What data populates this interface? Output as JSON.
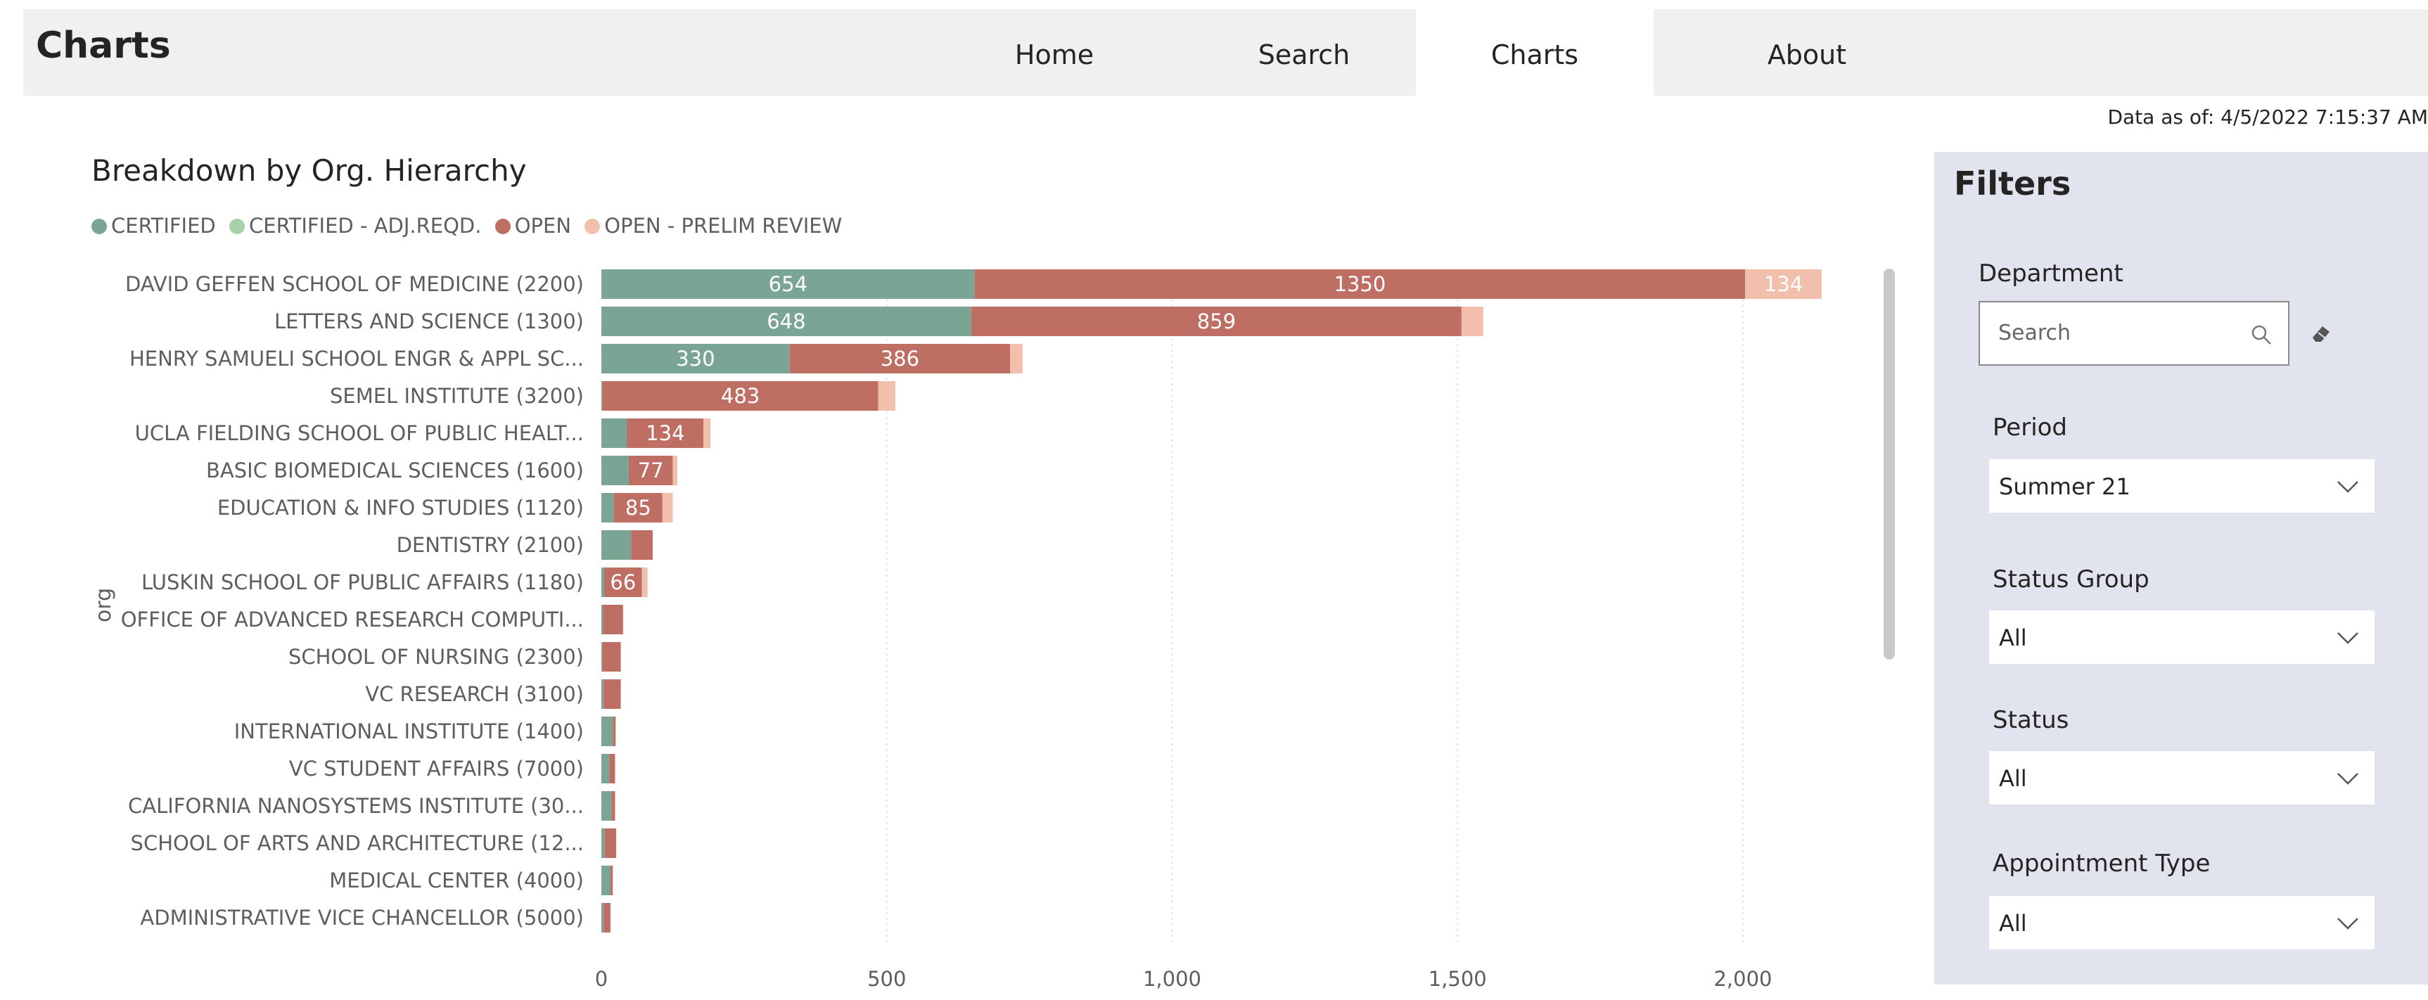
{
  "header": {
    "app_title": "Charts",
    "tabs": [
      {
        "label": "Home",
        "active": false
      },
      {
        "label": "Search",
        "active": false
      },
      {
        "label": "Charts",
        "active": true
      },
      {
        "label": "About",
        "active": false
      }
    ]
  },
  "data_as_of": "Data as of: 4/5/2022 7:15:37 AM",
  "chart_data": {
    "type": "bar",
    "orientation": "horizontal",
    "stacked": true,
    "title": "Breakdown by Org. Hierarchy",
    "ylabel": "org",
    "xlabel": "",
    "xlim": [
      0,
      2200
    ],
    "x_ticks": [
      0,
      500,
      1000,
      1500,
      2000
    ],
    "x_tick_labels": [
      "0",
      "500",
      "1,000",
      "1,500",
      "2,000"
    ],
    "grid": true,
    "legend_position": "top-left",
    "categories": [
      "DAVID GEFFEN SCHOOL OF MEDICINE (2200)",
      "LETTERS AND SCIENCE (1300)",
      "HENRY SAMUELI SCHOOL ENGR & APPL SC...",
      "SEMEL INSTITUTE (3200)",
      "UCLA FIELDING SCHOOL OF PUBLIC HEALT...",
      "BASIC BIOMEDICAL SCIENCES (1600)",
      "EDUCATION & INFO STUDIES (1120)",
      "DENTISTRY (2100)",
      "LUSKIN SCHOOL OF PUBLIC AFFAIRS (1180)",
      "OFFICE OF ADVANCED RESEARCH COMPUTI...",
      "SCHOOL OF NURSING (2300)",
      "VC RESEARCH (3100)",
      "INTERNATIONAL INSTITUTE (1400)",
      "VC STUDENT AFFAIRS (7000)",
      "CALIFORNIA NANOSYSTEMS INSTITUTE (30...",
      "SCHOOL OF ARTS AND ARCHITECTURE (12...",
      "MEDICAL CENTER (4000)",
      "ADMINISTRATIVE VICE CHANCELLOR (5000)"
    ],
    "series": [
      {
        "name": "CERTIFIED",
        "color": "#7aa595",
        "values": [
          654,
          648,
          330,
          2,
          45,
          48,
          22,
          52,
          5,
          3,
          2,
          4,
          20,
          14,
          18,
          6,
          16,
          4
        ],
        "labels": [
          "654",
          "648",
          "330",
          "",
          "",
          "",
          "",
          "",
          "",
          "",
          "",
          "",
          "",
          "",
          "",
          "",
          "",
          ""
        ]
      },
      {
        "name": "CERTIFIED - ADJ.REQD.",
        "color": "#a9d1a8",
        "values": [
          0,
          0,
          0,
          0,
          0,
          0,
          0,
          0,
          0,
          0,
          0,
          0,
          0,
          0,
          0,
          0,
          0,
          0
        ],
        "labels": [
          "",
          "",
          "",
          "",
          "",
          "",
          "",
          "",
          "",
          "",
          "",
          "",
          "",
          "",
          "",
          "",
          "",
          ""
        ]
      },
      {
        "name": "OPEN",
        "color": "#bf6e64",
        "values": [
          1350,
          859,
          386,
          483,
          134,
          77,
          85,
          38,
          66,
          35,
          32,
          30,
          5,
          10,
          6,
          20,
          4,
          12
        ],
        "labels": [
          "1350",
          "859",
          "386",
          "483",
          "134",
          "77",
          "85",
          "",
          "66",
          "",
          "",
          "",
          "",
          "",
          "",
          "",
          "",
          ""
        ]
      },
      {
        "name": "OPEN - PRELIM REVIEW",
        "color": "#f2bfad",
        "values": [
          134,
          38,
          22,
          30,
          12,
          8,
          18,
          0,
          10,
          0,
          0,
          0,
          0,
          0,
          0,
          0,
          0,
          0
        ],
        "labels": [
          "134",
          "",
          "",
          "",
          "",
          "",
          "",
          "",
          "",
          "",
          "",
          "",
          "",
          "",
          "",
          "",
          "",
          ""
        ]
      }
    ]
  },
  "filters": {
    "title": "Filters",
    "department": {
      "label": "Department",
      "placeholder": "Search"
    },
    "period": {
      "label": "Period",
      "value": "Summer 21"
    },
    "status_group": {
      "label": "Status Group",
      "value": "All"
    },
    "status": {
      "label": "Status",
      "value": "All"
    },
    "appointment_type": {
      "label": "Appointment Type",
      "value": "All"
    }
  }
}
